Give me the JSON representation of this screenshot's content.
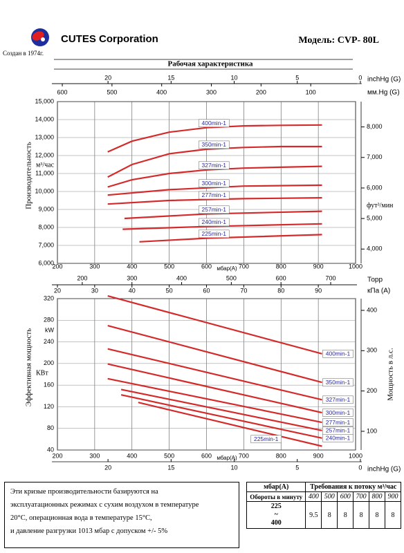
{
  "header": {
    "company": "CUTES Corporation",
    "model": "Модель: CVP- 80L",
    "founded": "Создан в 1974г.",
    "section_title": "Рабочая характеристика"
  },
  "chart_data": [
    {
      "type": "line",
      "xlabel": "мбар(A)",
      "ylabel": "Производительность",
      "yunit": "м³/час",
      "y2label": "фут³/мин",
      "xlim": [
        200,
        1000
      ],
      "xticks": [
        200,
        300,
        400,
        500,
        600,
        700,
        800,
        900,
        1000
      ],
      "ylim": [
        6000,
        15000
      ],
      "yticks": [
        {
          "value": 6000,
          "label": "6,000"
        },
        {
          "value": 7000,
          "label": "7,000"
        },
        {
          "value": 8000,
          "label": "8,000"
        },
        {
          "value": 9000,
          "label": "9,000"
        },
        {
          "value": 10000,
          "label": "10,000"
        },
        {
          "value": 11000,
          "label": "11,000"
        },
        {
          "value": 12000,
          "label": "12,000"
        },
        {
          "value": 13000,
          "label": "13,000"
        },
        {
          "value": 14000,
          "label": "14,000"
        },
        {
          "value": 15000,
          "label": "15,000"
        }
      ],
      "y2lim": [
        3531,
        8829
      ],
      "y2ticks": [
        {
          "value": 4000,
          "label": "4,000"
        },
        {
          "value": 5000,
          "label": "5,000"
        },
        {
          "value": 6000,
          "label": "6,000"
        },
        {
          "value": 7000,
          "label": "7,000"
        },
        {
          "value": 8000,
          "label": "8,000"
        }
      ],
      "x2label": "inchHg (G)",
      "x2lim": [
        24.01,
        0.38
      ],
      "x2ticks": [
        20,
        15,
        10,
        5,
        0
      ],
      "x3label": "мм.Hg (G)",
      "x3lim": [
        609.8,
        9.75
      ],
      "x3ticks": [
        600,
        500,
        400,
        300,
        200,
        100
      ],
      "grid": true,
      "series": [
        {
          "name": "400min-1",
          "color": "#d42a2a",
          "x": [
            335,
            400,
            500,
            600,
            700,
            800,
            910
          ],
          "values": [
            12200,
            12800,
            13300,
            13550,
            13650,
            13680,
            13700
          ]
        },
        {
          "name": "350min-1",
          "color": "#d42a2a",
          "x": [
            335,
            400,
            500,
            600,
            700,
            800,
            910
          ],
          "values": [
            10800,
            11500,
            12100,
            12350,
            12450,
            12500,
            12500
          ]
        },
        {
          "name": "327min-1",
          "color": "#d42a2a",
          "x": [
            335,
            400,
            500,
            600,
            700,
            800,
            910
          ],
          "values": [
            10250,
            10650,
            11000,
            11200,
            11300,
            11350,
            11400
          ]
        },
        {
          "name": "300min-1",
          "color": "#d42a2a",
          "x": [
            335,
            500,
            700,
            910
          ],
          "values": [
            9800,
            10100,
            10300,
            10350
          ]
        },
        {
          "name": "277min-1",
          "color": "#d42a2a",
          "x": [
            335,
            500,
            700,
            910
          ],
          "values": [
            9300,
            9500,
            9600,
            9650
          ]
        },
        {
          "name": "257min-1",
          "color": "#d42a2a",
          "x": [
            380,
            600,
            910
          ],
          "values": [
            8500,
            8750,
            8900
          ]
        },
        {
          "name": "240min-1",
          "color": "#d42a2a",
          "x": [
            375,
            600,
            910
          ],
          "values": [
            7900,
            8050,
            8200
          ]
        },
        {
          "name": "225min-1",
          "color": "#d42a2a",
          "x": [
            420,
            600,
            910
          ],
          "values": [
            7200,
            7400,
            7600
          ]
        }
      ]
    },
    {
      "type": "line",
      "xlabel": "мбар(A)",
      "ylabel": "Эффективная мощность",
      "yunit": "КВт",
      "yunit_alt": "kW",
      "y2label": "Мощность в л.с.",
      "xlim": [
        200,
        1000
      ],
      "xticks": [
        200,
        300,
        400,
        500,
        600,
        700,
        800,
        900,
        1000
      ],
      "ylim": [
        40,
        320
      ],
      "yticks": [
        40,
        80,
        120,
        160,
        200,
        240,
        280,
        320
      ],
      "y2lim": [
        53.6,
        429.1
      ],
      "y2ticks": [
        100,
        200,
        300,
        400
      ],
      "x2label": "Торр",
      "x2lim": [
        150.0,
        750.1
      ],
      "x2ticks": [
        200,
        300,
        400,
        500,
        600,
        700
      ],
      "x3label": "кПа (A)",
      "x3lim": [
        20,
        100
      ],
      "x3ticks": [
        20,
        30,
        40,
        50,
        60,
        70,
        80,
        90
      ],
      "x4label": "inchHg (G)",
      "x4lim": [
        24.01,
        0.38
      ],
      "x4ticks": [
        20,
        15,
        10,
        5,
        0
      ],
      "grid": true,
      "series": [
        {
          "name": "400min-1",
          "color": "#d42a2a",
          "x": [
            335,
            910
          ],
          "values": [
            325,
            218
          ]
        },
        {
          "name": "350min-1",
          "color": "#d42a2a",
          "x": [
            335,
            910
          ],
          "values": [
            270,
            165
          ]
        },
        {
          "name": "327min-1",
          "color": "#d42a2a",
          "x": [
            335,
            910
          ],
          "values": [
            227,
            133
          ]
        },
        {
          "name": "300min-1",
          "color": "#d42a2a",
          "x": [
            335,
            910
          ],
          "values": [
            199,
            109
          ]
        },
        {
          "name": "277min-1",
          "color": "#d42a2a",
          "x": [
            335,
            910
          ],
          "values": [
            172,
            91
          ]
        },
        {
          "name": "257min-1",
          "color": "#d42a2a",
          "x": [
            371,
            910
          ],
          "values": [
            152,
            76
          ]
        },
        {
          "name": "240min-1",
          "color": "#d42a2a",
          "x": [
            371,
            910
          ],
          "values": [
            142,
            62
          ]
        },
        {
          "name": "225min-1",
          "color": "#d42a2a",
          "x": [
            417,
            910
          ],
          "values": [
            128,
            47
          ]
        }
      ]
    }
  ],
  "note": [
    "Эти кризые производительности базируются на",
    "эксплуатационных режимах с сухим воздухом в температуре",
    "20°С, операционная вода в температуре 15°С,",
    "и давление разгрузки 1013 мбар с допуском +/- 5%"
  ],
  "table": {
    "corner": "мбар(A)",
    "title": "Требования к потоку м³/час",
    "rpm_label": "Обороты в минуту",
    "rpm": [
      400,
      500,
      600,
      700,
      800,
      900
    ],
    "range": [
      "225",
      "~",
      "400"
    ],
    "values": [
      9.5,
      8,
      8,
      8,
      8,
      8
    ]
  }
}
